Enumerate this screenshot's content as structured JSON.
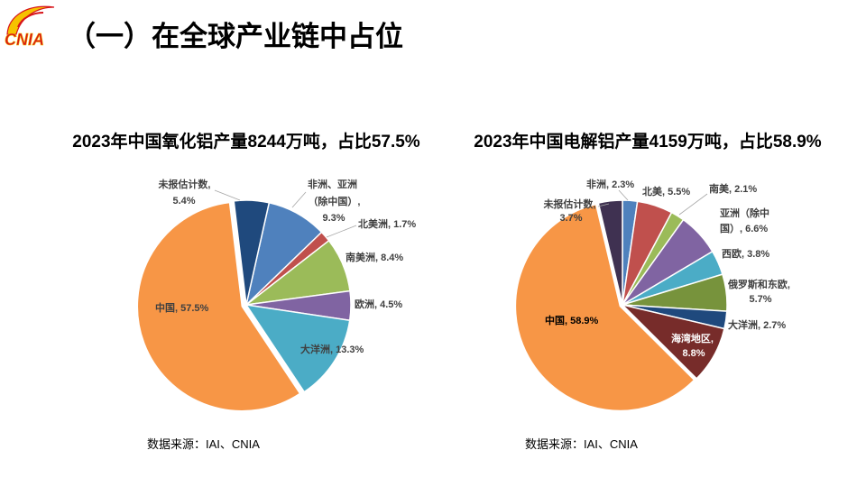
{
  "logo": {
    "text": "CNIA"
  },
  "header": {
    "title": "（一）在全球产业链中占位"
  },
  "chart_data": [
    {
      "type": "pie",
      "title": "2023年中国氧化铝产量8244万吨，占比57.5%",
      "source": "数据来源：IAI、CNIA",
      "slices": [
        {
          "label_lines": [
            "非洲、亚洲",
            "（除中国）,",
            "9.3%"
          ],
          "value": 9.3,
          "color": "#4F81BD"
        },
        {
          "label_lines": [
            "北美洲, 1.7%"
          ],
          "value": 1.7,
          "color": "#C0504D"
        },
        {
          "label_lines": [
            "南美洲, 8.4%"
          ],
          "value": 8.4,
          "color": "#9BBB59"
        },
        {
          "label_lines": [
            "欧洲, 4.5%"
          ],
          "value": 4.5,
          "color": "#8064A2"
        },
        {
          "label_lines": [
            "大洋洲, 13.3%"
          ],
          "value": 13.3,
          "color": "#4BACC6"
        },
        {
          "label_lines": [
            "中国, 57.5%"
          ],
          "value": 57.5,
          "color": "#F79646"
        },
        {
          "label_lines": [
            "未报估计数,",
            "5.4%"
          ],
          "value": 5.4,
          "color": "#1F497D"
        }
      ]
    },
    {
      "type": "pie",
      "title": "2023年中国电解铝产量4159万吨，占比58.9%",
      "source": "数据来源：IAI、CNIA",
      "slices": [
        {
          "label_lines": [
            "非洲, 2.3%"
          ],
          "value": 2.3,
          "color": "#4F81BD"
        },
        {
          "label_lines": [
            "北美, 5.5%"
          ],
          "value": 5.5,
          "color": "#C0504D"
        },
        {
          "label_lines": [
            "南美, 2.1%"
          ],
          "value": 2.1,
          "color": "#9BBB59"
        },
        {
          "label_lines": [
            "亚洲（除中",
            "国）, 6.6%"
          ],
          "value": 6.6,
          "color": "#8064A2"
        },
        {
          "label_lines": [
            "西欧, 3.8%"
          ],
          "value": 3.8,
          "color": "#4BACC6"
        },
        {
          "label_lines": [
            "俄罗斯和东欧,",
            "5.7%"
          ],
          "value": 5.7,
          "color": "#77933C"
        },
        {
          "label_lines": [
            "大洋洲, 2.7%"
          ],
          "value": 2.7,
          "color": "#1F497D"
        },
        {
          "label_lines": [
            "海湾地区,",
            "8.8%"
          ],
          "value": 8.8,
          "color": "#772C2A"
        },
        {
          "label_lines": [
            "中国, 58.9%"
          ],
          "value": 58.9,
          "color": "#F79646"
        },
        {
          "label_lines": [
            "未报估计数,",
            "3.7%"
          ],
          "value": 3.7,
          "color": "#3F3151"
        }
      ]
    }
  ]
}
